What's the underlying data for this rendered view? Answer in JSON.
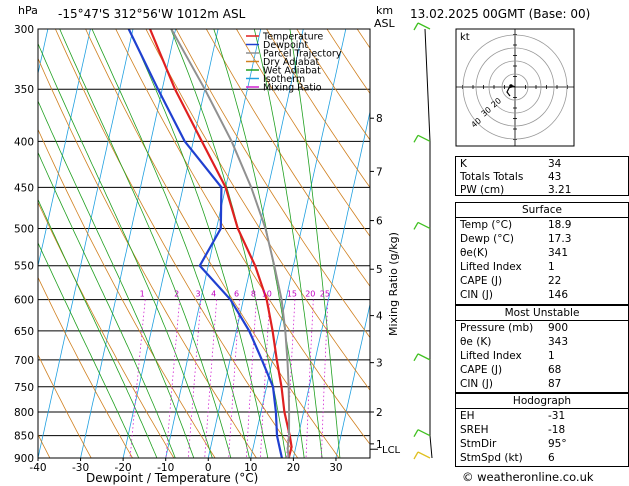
{
  "header": {
    "pressure_unit": "hPa",
    "location": "-15°47'S  312°56'W  1012m  ASL",
    "alt_unit_top": "km",
    "alt_unit_bottom": "ASL",
    "datetime": "13.02.2025  00GMT  (Base: 00)"
  },
  "footer": {
    "xlabel": "Dewpoint / Temperature (°C)",
    "credit": "© weatheronline.co.uk",
    "mixing_ratio_label": "Mixing Ratio (g/kg)"
  },
  "chart_data": {
    "type": "line",
    "title": "-15°47'S  312°56'W  1012m  ASL",
    "xlabel": "Dewpoint / Temperature (°C)",
    "ylabel": "hPa",
    "xlim": [
      -40,
      38
    ],
    "pressure_range": [
      300,
      900
    ],
    "pressure_ticks": [
      300,
      350,
      400,
      450,
      500,
      550,
      600,
      650,
      700,
      750,
      800,
      850,
      900
    ],
    "temperature_ticks": [
      -40,
      -30,
      -20,
      -10,
      0,
      10,
      20,
      30
    ],
    "altitude_km_ticks": [
      {
        "label": "8",
        "p": 377
      },
      {
        "label": "7",
        "p": 432
      },
      {
        "label": "6",
        "p": 490
      },
      {
        "label": "5",
        "p": 555
      },
      {
        "label": "4",
        "p": 625
      },
      {
        "label": "3",
        "p": 705
      },
      {
        "label": "2",
        "p": 800
      },
      {
        "label": "1",
        "p": 868
      }
    ],
    "lcl": {
      "label": "LCL",
      "p": 880
    },
    "mixing_ratio_labels": [
      "1",
      "2",
      "3",
      "4",
      "6",
      "8",
      "10",
      "15",
      "20",
      "25"
    ],
    "mixing_ratio_values": [
      1,
      2,
      3,
      4,
      6,
      8,
      10,
      15,
      20,
      25
    ],
    "legend": [
      "Temperature",
      "Dewpoint",
      "Parcel Trajectory",
      "Dry Adiabat",
      "Wet Adiabat",
      "Isotherm",
      "Mixing Ratio"
    ],
    "legend_colors": [
      "#e02020",
      "#2040d0",
      "#909090",
      "#d08020",
      "#20a020",
      "#20a0e0",
      "#d020d0"
    ],
    "series": [
      {
        "name": "Temperature",
        "color": "#e02020",
        "points": [
          [
            300,
            -36
          ],
          [
            350,
            -27
          ],
          [
            400,
            -18
          ],
          [
            450,
            -10
          ],
          [
            500,
            -5
          ],
          [
            550,
            1
          ],
          [
            600,
            5.5
          ],
          [
            650,
            8.5
          ],
          [
            700,
            11
          ],
          [
            750,
            13.5
          ],
          [
            800,
            15.5
          ],
          [
            850,
            18
          ],
          [
            875,
            19
          ],
          [
            900,
            18.9
          ]
        ]
      },
      {
        "name": "Dewpoint",
        "color": "#2040d0",
        "points": [
          [
            300,
            -41
          ],
          [
            350,
            -31
          ],
          [
            400,
            -22
          ],
          [
            450,
            -11
          ],
          [
            500,
            -9
          ],
          [
            550,
            -12
          ],
          [
            600,
            -3
          ],
          [
            650,
            3
          ],
          [
            700,
            7.5
          ],
          [
            750,
            11.5
          ],
          [
            800,
            13.5
          ],
          [
            850,
            15
          ],
          [
            900,
            17.3
          ]
        ]
      },
      {
        "name": "Parcel Trajectory",
        "color": "#909090",
        "points": [
          [
            900,
            18.9
          ],
          [
            880,
            18.2
          ],
          [
            850,
            17.8
          ],
          [
            800,
            16.6
          ],
          [
            750,
            15.2
          ],
          [
            700,
            13.5
          ],
          [
            650,
            11.5
          ],
          [
            600,
            9
          ],
          [
            550,
            5.5
          ],
          [
            500,
            1.5
          ],
          [
            450,
            -4
          ],
          [
            400,
            -11
          ],
          [
            350,
            -20
          ],
          [
            300,
            -31
          ]
        ]
      }
    ],
    "grid": true
  },
  "hodograph": {
    "label": "kt",
    "ring_labels": [
      "40",
      "30",
      "20"
    ]
  },
  "indices": {
    "rows": [
      {
        "k": "K",
        "v": "34"
      },
      {
        "k": "Totals Totals",
        "v": "43"
      },
      {
        "k": "PW (cm)",
        "v": "3.21"
      }
    ]
  },
  "surface": {
    "title": "Surface",
    "rows": [
      {
        "k": "Temp (°C)",
        "v": "18.9"
      },
      {
        "k": "Dewp (°C)",
        "v": "17.3"
      },
      {
        "k": "θe(K)",
        "v": "341"
      },
      {
        "k": "Lifted Index",
        "v": "1"
      },
      {
        "k": "CAPE (J)",
        "v": "22"
      },
      {
        "k": "CIN (J)",
        "v": "146"
      }
    ]
  },
  "most_unstable": {
    "title": "Most Unstable",
    "rows": [
      {
        "k": "Pressure (mb)",
        "v": "900"
      },
      {
        "k": "θe (K)",
        "v": "343"
      },
      {
        "k": "Lifted Index",
        "v": "1"
      },
      {
        "k": "CAPE (J)",
        "v": "68"
      },
      {
        "k": "CIN (J)",
        "v": "87"
      }
    ]
  },
  "hodo_indices": {
    "title": "Hodograph",
    "rows": [
      {
        "k": "EH",
        "v": "-31"
      },
      {
        "k": "SREH",
        "v": "-18"
      },
      {
        "k": "StmDir",
        "v": "95°"
      },
      {
        "k": "StmSpd (kt)",
        "v": "6"
      }
    ]
  }
}
